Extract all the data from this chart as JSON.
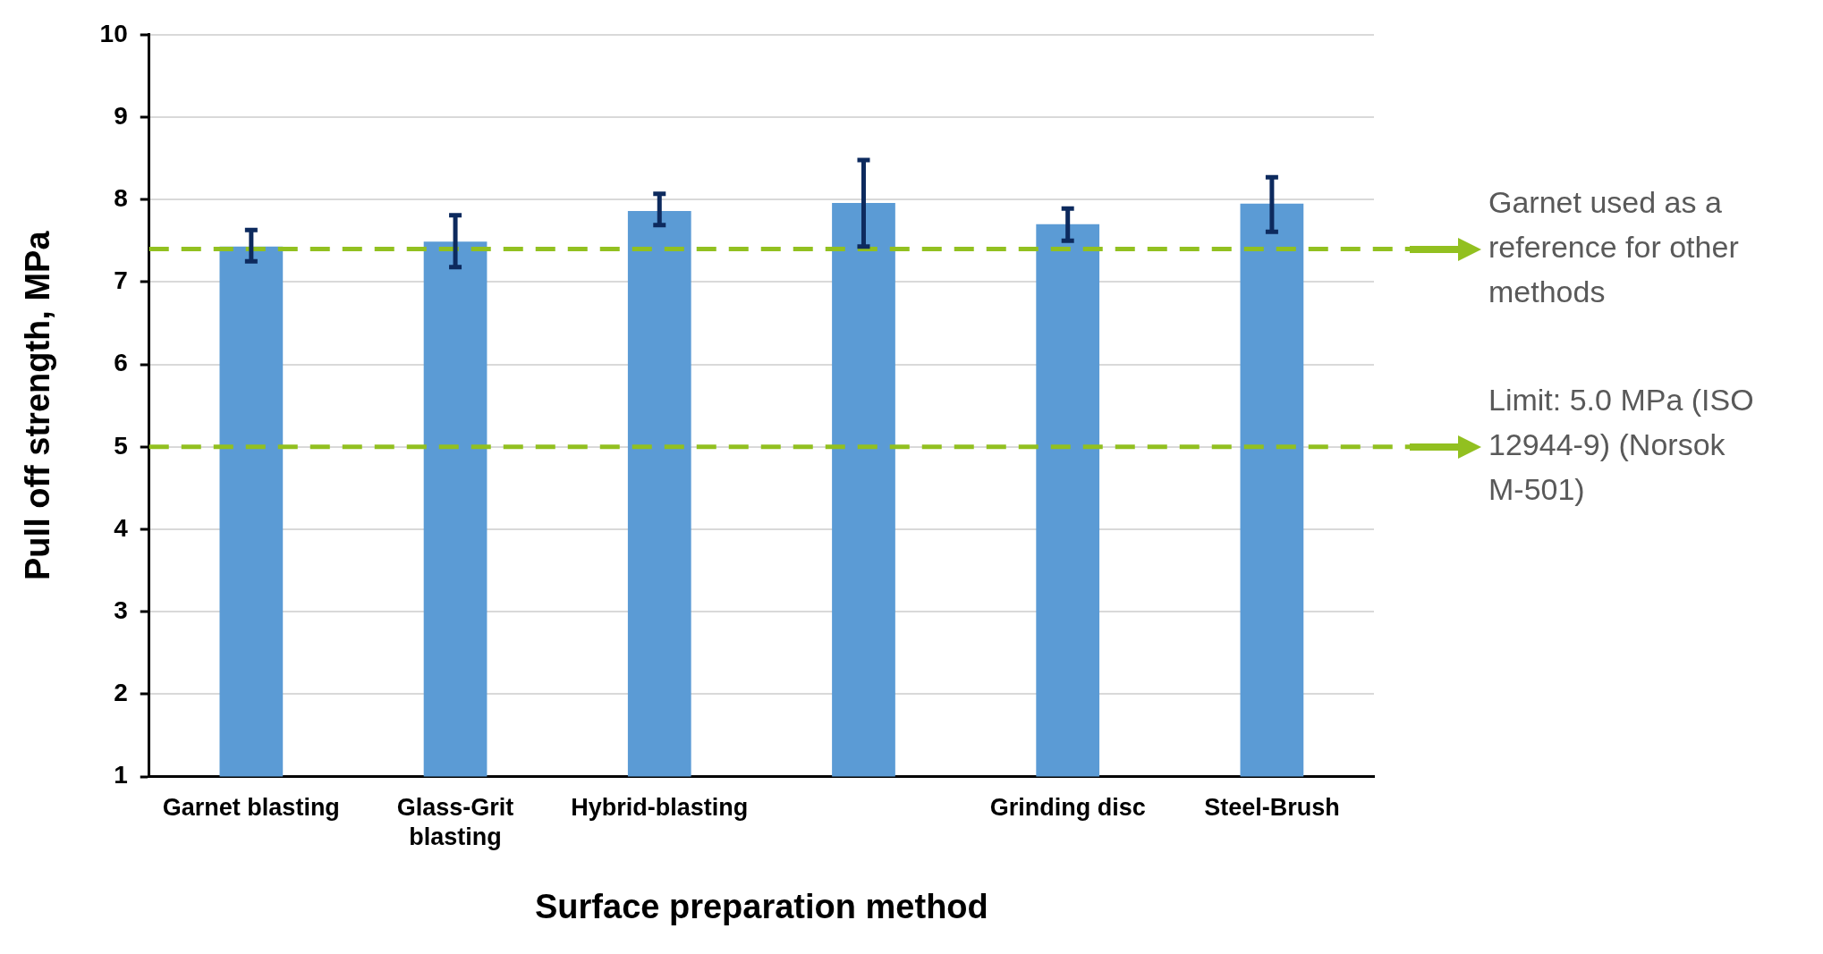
{
  "chart_data": {
    "type": "bar",
    "xlabel": "Surface preparation method",
    "ylabel": "Pull off strength, MPa",
    "categories": [
      "Garnet blasting",
      "Glass-Grit blasting",
      "Hybrid-blasting",
      null,
      "Grinding disc",
      "Steel-Brush"
    ],
    "values": [
      7.43,
      7.49,
      7.86,
      7.96,
      7.7,
      7.95
    ],
    "errors": [
      [
        7.25,
        7.63
      ],
      [
        7.18,
        7.81
      ],
      [
        7.69,
        8.07
      ],
      [
        7.43,
        8.48
      ],
      [
        7.5,
        7.89
      ],
      [
        7.61,
        8.27
      ]
    ],
    "color": "#5b9bd5",
    "ylim": [
      1,
      10
    ],
    "yticks": [
      1,
      2,
      3,
      4,
      5,
      6,
      7,
      8,
      9,
      10
    ],
    "grid": "y",
    "ref_lines": [
      {
        "axis": "y",
        "value": 7.4,
        "label": "Garnet used as a reference for other methods",
        "color": "#92c020",
        "line_style": "dashed"
      },
      {
        "axis": "y",
        "value": 5,
        "label": "Limit: 5.0 MPa (ISO 12944-9) (Norsok M-501)",
        "color": "#92c020",
        "line_style": "dashed"
      }
    ]
  }
}
